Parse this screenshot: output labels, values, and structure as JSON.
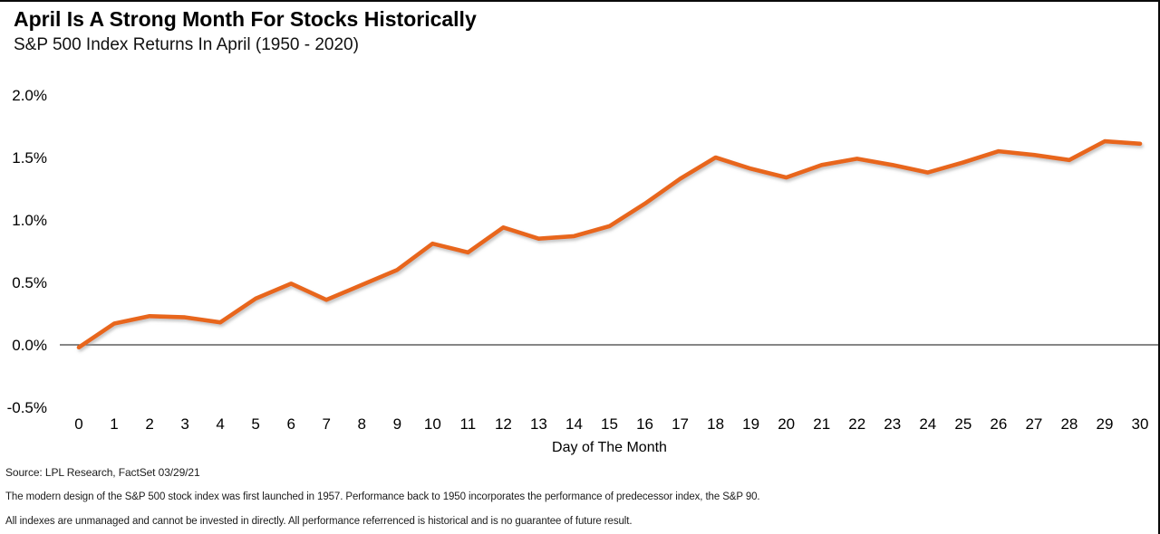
{
  "header": {
    "title": "April Is A Strong Month For Stocks Historically",
    "subtitle": "S&P 500 Index Returns In April (1950 - 2020)"
  },
  "footnotes": {
    "source": "Source: LPL Research, FactSet 03/29/21",
    "disclosure1": "The modern design of the S&P 500 stock index was first launched in 1957. Performance back to 1950 incorporates the performance of predecessor index, the S&P 90.",
    "disclosure2": "All indexes are unmanaged and cannot be invested in directly. All performance referrenced is historical and is no guarantee of future result."
  },
  "colors": {
    "line": "#E8661E",
    "line_shadow": "#9a9a9a",
    "axis_line": "#3f3f3f",
    "tick_text": "#000000"
  },
  "chart_data": {
    "type": "line",
    "title": "April Is A Strong Month For Stocks Historically",
    "subtitle": "S&P 500 Index Returns In April (1950 - 2020)",
    "x": [
      0,
      1,
      2,
      3,
      4,
      5,
      6,
      7,
      8,
      9,
      10,
      11,
      12,
      13,
      14,
      15,
      16,
      17,
      18,
      19,
      20,
      21,
      22,
      23,
      24,
      25,
      26,
      27,
      28,
      29,
      30
    ],
    "values": [
      -0.02,
      0.17,
      0.23,
      0.22,
      0.18,
      0.37,
      0.49,
      0.36,
      0.48,
      0.6,
      0.81,
      0.74,
      0.94,
      0.85,
      0.87,
      0.95,
      1.13,
      1.33,
      1.5,
      1.41,
      1.34,
      1.44,
      1.49,
      1.44,
      1.38,
      1.46,
      1.55,
      1.52,
      1.48,
      1.63,
      1.61
    ],
    "xlabel": "Day of The Month",
    "ylabel": "",
    "ylim": [
      -0.5,
      2.0
    ],
    "yticks": [
      2.0,
      1.5,
      1.0,
      0.5,
      0.0,
      -0.5
    ],
    "ytick_suffix": "%",
    "grid": false,
    "legend": "none",
    "line_style": "solid with drop shadow"
  }
}
